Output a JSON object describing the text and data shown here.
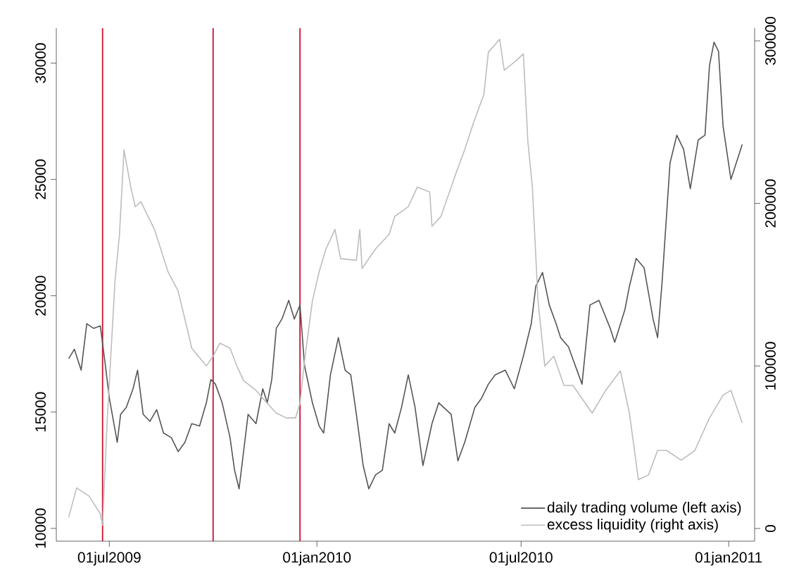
{
  "chart_data": {
    "type": "line",
    "xlim": [
      "2009-05-15",
      "2011-01-24"
    ],
    "xticks": [
      {
        "value": "2009-07-01",
        "label": "01jul2009"
      },
      {
        "value": "2010-01-01",
        "label": "01jan2010"
      },
      {
        "value": "2010-07-01",
        "label": "01jul2010"
      },
      {
        "value": "2011-01-01",
        "label": "01jan2011"
      }
    ],
    "ylim": [
      9450,
      31500
    ],
    "yticks": [
      10000,
      15000,
      20000,
      25000,
      30000
    ],
    "y2lim": [
      -7800,
      307800
    ],
    "y2ticks": [
      0,
      100000,
      200000,
      300000
    ],
    "legend": "bottom right",
    "series": [
      {
        "name": "daily trading volume (left axis)",
        "color": "#555555",
        "axis": "y",
        "x": [
          "2009-05-26",
          "2009-05-31",
          "2009-06-06",
          "2009-06-11",
          "2009-06-17",
          "2009-06-23",
          "2009-06-27",
          "2009-07-01",
          "2009-07-08",
          "2009-07-11",
          "2009-07-16",
          "2009-07-22",
          "2009-07-26",
          "2009-07-31",
          "2009-08-06",
          "2009-08-12",
          "2009-08-18",
          "2009-08-25",
          "2009-08-31",
          "2009-09-06",
          "2009-09-12",
          "2009-09-19",
          "2009-09-25",
          "2009-09-29",
          "2009-10-03",
          "2009-10-09",
          "2009-10-16",
          "2009-10-20",
          "2009-10-24",
          "2009-10-28",
          "2009-11-01",
          "2009-11-08",
          "2009-11-14",
          "2009-11-18",
          "2009-11-22",
          "2009-11-26",
          "2009-12-01",
          "2009-12-07",
          "2009-12-12",
          "2009-12-17",
          "2009-12-21",
          "2009-12-28",
          "2010-01-03",
          "2010-01-07",
          "2010-01-13",
          "2010-01-20",
          "2010-01-26",
          "2010-01-31",
          "2010-02-05",
          "2010-02-11",
          "2010-02-16",
          "2010-02-22",
          "2010-02-28",
          "2010-03-06",
          "2010-03-11",
          "2010-03-17",
          "2010-03-23",
          "2010-03-29",
          "2010-04-05",
          "2010-04-13",
          "2010-04-19",
          "2010-04-30",
          "2010-05-06",
          "2010-05-12",
          "2010-05-21",
          "2010-05-27",
          "2010-06-02",
          "2010-06-08",
          "2010-06-17",
          "2010-06-25",
          "2010-07-03",
          "2010-07-10",
          "2010-07-14",
          "2010-07-20",
          "2010-07-26",
          "2010-08-01",
          "2010-08-05",
          "2010-08-12",
          "2010-08-18",
          "2010-08-24",
          "2010-08-31",
          "2010-09-08",
          "2010-09-18",
          "2010-09-22",
          "2010-10-01",
          "2010-10-05",
          "2010-10-11",
          "2010-10-18",
          "2010-10-26",
          "2010-10-30",
          "2010-11-03",
          "2010-11-10",
          "2010-11-16",
          "2010-11-22",
          "2010-11-28",
          "2010-12-05",
          "2010-12-11",
          "2010-12-15",
          "2010-12-19",
          "2010-12-23",
          "2010-12-27",
          "2011-01-03",
          "2011-01-09",
          "2011-01-13"
        ],
        "values": [
          17300,
          17700,
          16800,
          18800,
          18600,
          18700,
          17200,
          15600,
          13700,
          14900,
          15200,
          16000,
          16800,
          14900,
          14600,
          15100,
          14100,
          13900,
          13300,
          13700,
          14500,
          14400,
          15400,
          16400,
          16200,
          15400,
          13900,
          12500,
          11700,
          13300,
          14900,
          14500,
          16000,
          15400,
          16400,
          18600,
          19000,
          19800,
          19000,
          19600,
          17000,
          15400,
          14400,
          14100,
          16600,
          18200,
          16800,
          16600,
          14900,
          12700,
          11700,
          12300,
          12500,
          14500,
          14100,
          15200,
          16600,
          15200,
          12700,
          14500,
          15400,
          14900,
          12900,
          13700,
          15200,
          15600,
          16200,
          16600,
          16800,
          16000,
          17400,
          18800,
          20400,
          21000,
          19600,
          18800,
          18200,
          17800,
          17000,
          16200,
          19600,
          19800,
          18600,
          18000,
          19400,
          20400,
          21600,
          21200,
          19000,
          18200,
          20600,
          25700,
          26900,
          26300,
          24600,
          26700,
          26900,
          29900,
          30900,
          30500,
          27300,
          25000,
          25900,
          26500
        ]
      },
      {
        "name": "excess liquidity (right axis)",
        "color": "#bdbdbd",
        "axis": "y2",
        "x": [
          "2009-05-26",
          "2009-06-02",
          "2009-06-13",
          "2009-06-23",
          "2009-06-25",
          "2009-06-29",
          "2009-07-06",
          "2009-07-10",
          "2009-07-14",
          "2009-07-20",
          "2009-07-24",
          "2009-07-29",
          "2009-08-10",
          "2009-08-22",
          "2009-08-31",
          "2009-09-08",
          "2009-09-12",
          "2009-09-25",
          "2009-10-01",
          "2009-10-07",
          "2009-10-16",
          "2009-10-22",
          "2009-10-28",
          "2009-11-08",
          "2009-11-18",
          "2009-11-26",
          "2009-12-05",
          "2009-12-13",
          "2009-12-17",
          "2009-12-21",
          "2009-12-28",
          "2010-01-03",
          "2010-01-09",
          "2010-01-17",
          "2010-01-22",
          "2010-02-05",
          "2010-02-08",
          "2010-02-10",
          "2010-02-22",
          "2010-03-06",
          "2010-03-11",
          "2010-03-23",
          "2010-03-31",
          "2010-04-11",
          "2010-04-13",
          "2010-04-21",
          "2010-05-04",
          "2010-05-12",
          "2010-05-20",
          "2010-05-29",
          "2010-06-02",
          "2010-06-12",
          "2010-06-16",
          "2010-06-27",
          "2010-07-03",
          "2010-07-07",
          "2010-07-11",
          "2010-07-16",
          "2010-07-22",
          "2010-07-30",
          "2010-08-08",
          "2010-08-16",
          "2010-08-24",
          "2010-09-02",
          "2010-09-14",
          "2010-09-27",
          "2010-10-05",
          "2010-10-13",
          "2010-10-22",
          "2010-10-30",
          "2010-11-07",
          "2010-11-20",
          "2010-12-02",
          "2010-12-15",
          "2010-12-27",
          "2011-01-03",
          "2011-01-13"
        ],
        "values": [
          7000,
          25000,
          20000,
          9000,
          2000,
          65000,
          152000,
          181000,
          233000,
          210000,
          198000,
          201000,
          184000,
          158000,
          146000,
          123000,
          111000,
          100000,
          106000,
          114000,
          111000,
          100000,
          91000,
          85000,
          77000,
          71000,
          68000,
          68000,
          77000,
          103000,
          140000,
          158000,
          172000,
          184000,
          166000,
          165000,
          184000,
          160000,
          172000,
          181000,
          192000,
          198000,
          210000,
          207000,
          186000,
          192000,
          218000,
          233000,
          250000,
          267000,
          293000,
          301000,
          282000,
          288000,
          292000,
          238000,
          210000,
          140000,
          100000,
          106000,
          88000,
          88000,
          80000,
          71000,
          85000,
          97000,
          71000,
          30000,
          33000,
          48000,
          48000,
          42000,
          48000,
          68000,
          82000,
          85000,
          65000
        ]
      }
    ],
    "ref_lines": [
      {
        "axis": "x",
        "value": "2009-06-25",
        "color": "#c8102e"
      },
      {
        "axis": "x",
        "value": "2009-10-01",
        "color": "#c8102e"
      },
      {
        "axis": "x",
        "value": "2009-12-17",
        "color": "#c8102e"
      }
    ]
  }
}
